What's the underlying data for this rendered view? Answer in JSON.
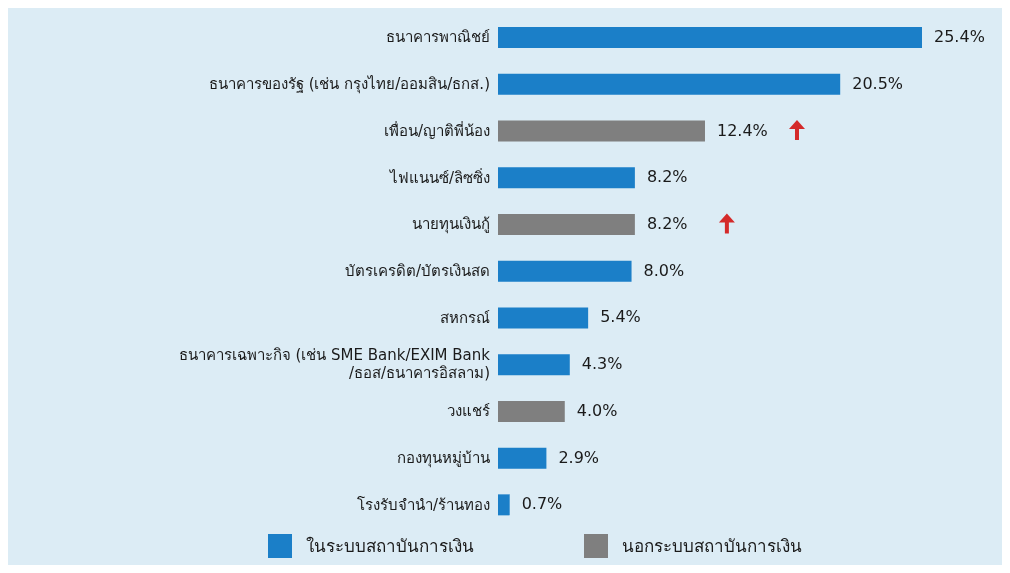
{
  "chart_data": {
    "type": "bar",
    "orientation": "horizontal",
    "categories": [
      "ธนาคารพาณิชย์",
      "ธนาคารของรัฐ (เช่น กรุงไทย/ออมสิน/ธกส.)",
      "เพื่อน/ญาติพี่น้อง",
      "ไฟแนนซ์/ลิซซิ่ง",
      "นายทุนเงินกู้",
      "บัตรเครดิต/บัตรเงินสด",
      "สหกรณ์",
      "ธนาคารเฉพาะกิจ (เช่น SME Bank/EXIM Bank/ธอส/ธนาคารอิสลาม)",
      "วงแชร์",
      "กองทุนหมู่บ้าน",
      "โรงรับจำนำ/ร้านทอง"
    ],
    "series": [
      {
        "name": "ในระบบสถาบันการเงิน",
        "color": "#1b7fc8",
        "values": [
          25.4,
          20.5,
          null,
          8.2,
          null,
          8.0,
          5.4,
          4.3,
          null,
          2.9,
          0.7
        ],
        "value_labels": [
          "25.4%",
          "20.5%",
          null,
          "8.2%",
          null,
          "8.0%",
          "5.4%",
          "4.3%",
          null,
          "2.9%",
          "0.7%"
        ]
      },
      {
        "name": "นอกระบบสถาบันการเงิน",
        "color": "#7f7f7f",
        "values": [
          null,
          null,
          12.4,
          null,
          8.2,
          null,
          null,
          null,
          4.0,
          null,
          null
        ],
        "value_labels": [
          null,
          null,
          "12.4%",
          null,
          "8.2%",
          null,
          null,
          null,
          "4.0%",
          null,
          null
        ]
      }
    ],
    "legend": "bottom"
  }
}
